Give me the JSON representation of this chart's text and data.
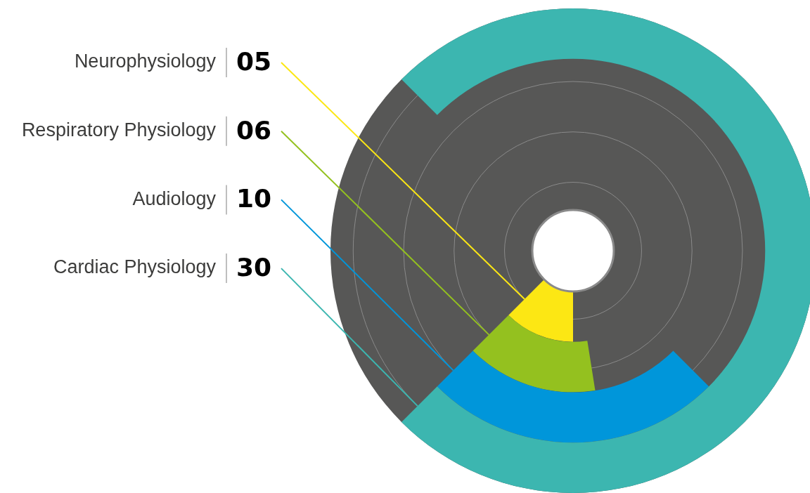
{
  "chart_data": {
    "type": "other",
    "categories": [
      "Neurophysiology",
      "Respiratory Physiology",
      "Audiology",
      "Cardiac Physiology"
    ],
    "values": [
      5,
      6,
      10,
      30
    ],
    "value_labels": [
      "05",
      "06",
      "10",
      "30"
    ],
    "colors": [
      "#fce714",
      "#94c11f",
      "#0096da",
      "#3cb6b0"
    ]
  }
}
